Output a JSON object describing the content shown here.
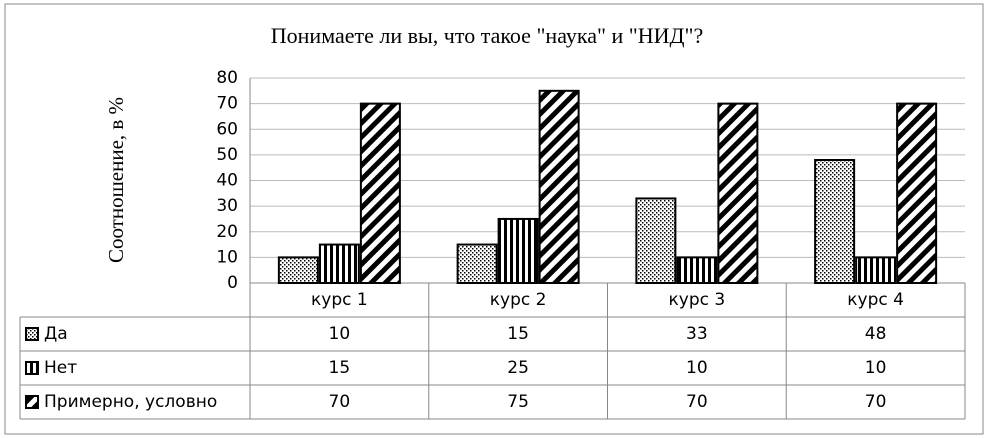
{
  "chart_data": {
    "type": "bar",
    "title": "Понимаете ли вы, что такое \"наука\" и \"НИД\"?",
    "y_label": "Соотношение, в %",
    "categories": [
      "курс 1",
      "курс 2",
      "курс 3",
      "курс 4"
    ],
    "series": [
      {
        "name": "Да",
        "color": "#000000",
        "pattern": "dots",
        "values": [
          10,
          15,
          33,
          48
        ]
      },
      {
        "name": "Нет",
        "color": "#000000",
        "pattern": "vertical",
        "values": [
          15,
          25,
          10,
          10
        ]
      },
      {
        "name": "Примерно, условно",
        "color": "#000000",
        "pattern": "diagonal",
        "values": [
          70,
          75,
          70,
          70
        ]
      }
    ],
    "ylim": [
      0,
      80
    ],
    "yticks": [
      0,
      10,
      20,
      30,
      40,
      50,
      60,
      70,
      80
    ],
    "grid": true,
    "data_table": true
  }
}
